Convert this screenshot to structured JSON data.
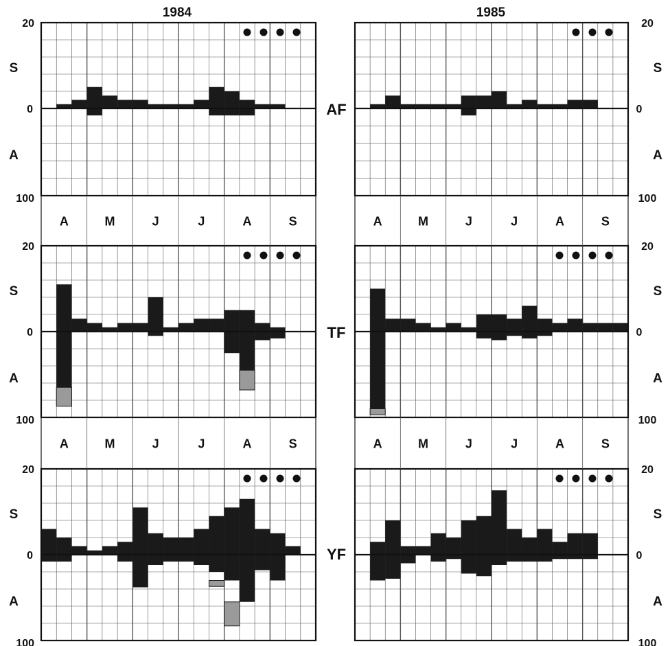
{
  "colors": {
    "bar": "#1a1a1a",
    "shaded": "#9a9a9a",
    "grid": "#555555",
    "frame": "#111111"
  },
  "chart_data": [
    {
      "type": "bar",
      "title": "1984",
      "panel": "AF",
      "side": "left",
      "months": [
        "A",
        "M",
        "J",
        "J",
        "A",
        "S"
      ],
      "y_top_label": "20",
      "y_zero_label": "0",
      "y_bottom_label": "100",
      "upper_label": "S",
      "lower_label": "A",
      "ylim_upper": [
        0,
        20
      ],
      "ylim_lower": [
        0,
        100
      ],
      "dots": 4,
      "grid": true,
      "weeks_start": 1,
      "S": [
        1,
        2,
        5,
        3,
        2,
        2,
        1,
        1,
        1,
        2,
        5,
        4,
        2,
        1,
        1
      ],
      "A": [
        0,
        0,
        8,
        0,
        0,
        0,
        0,
        0,
        0,
        0,
        8,
        8,
        8,
        0,
        0
      ],
      "A_shaded": []
    },
    {
      "type": "bar",
      "title": "1984",
      "panel": "TF",
      "side": "left",
      "months": [
        "A",
        "M",
        "J",
        "J",
        "A",
        "S"
      ],
      "y_top_label": "20",
      "y_zero_label": "0",
      "y_bottom_label": "100",
      "upper_label": "S",
      "lower_label": "A",
      "ylim_upper": [
        0,
        20
      ],
      "ylim_lower": [
        0,
        100
      ],
      "dots": 4,
      "grid": true,
      "weeks_start": 1,
      "S": [
        11,
        3,
        2,
        1,
        2,
        2,
        8,
        1,
        2,
        3,
        3,
        5,
        5,
        2,
        1
      ],
      "A": [
        65,
        0,
        0,
        0,
        0,
        0,
        5,
        0,
        0,
        0,
        0,
        25,
        45,
        10,
        8
      ],
      "A_shaded": [
        {
          "week": 1,
          "from": 65,
          "to": 87
        },
        {
          "week": 13,
          "from": 45,
          "to": 68
        }
      ]
    },
    {
      "type": "bar",
      "title": "1984",
      "panel": "YF",
      "side": "left",
      "months": [
        "A",
        "M",
        "J",
        "J",
        "A",
        "S"
      ],
      "y_top_label": "20",
      "y_zero_label": "0",
      "y_bottom_label": "100",
      "upper_label": "S",
      "lower_label": "A",
      "ylim_upper": [
        0,
        20
      ],
      "ylim_lower": [
        0,
        100
      ],
      "dots": 4,
      "grid": true,
      "weeks_start": 0,
      "S": [
        6,
        4,
        2,
        1,
        2,
        3,
        11,
        5,
        4,
        4,
        6,
        9,
        11,
        13,
        6,
        5,
        2
      ],
      "A": [
        8,
        8,
        0,
        0,
        0,
        8,
        38,
        12,
        8,
        8,
        12,
        20,
        30,
        55,
        18,
        30,
        0
      ],
      "A_shaded": [
        {
          "week": 12,
          "from": 30,
          "to": 37
        },
        {
          "week": 13,
          "from": 55,
          "to": 83
        }
      ]
    },
    {
      "type": "bar",
      "title": "1985",
      "panel": "AF",
      "side": "right",
      "months": [
        "A",
        "M",
        "J",
        "J",
        "A",
        "S"
      ],
      "y_top_label": "20",
      "y_zero_label": "0",
      "y_bottom_label": "100",
      "upper_label": "S",
      "lower_label": "A",
      "ylim_upper": [
        0,
        20
      ],
      "ylim_lower": [
        0,
        100
      ],
      "dots": 3,
      "grid": true,
      "weeks_start": 1,
      "S": [
        1,
        3,
        1,
        1,
        1,
        1,
        3,
        3,
        4,
        1,
        2,
        1,
        1,
        2,
        2
      ],
      "A": [
        0,
        0,
        0,
        0,
        0,
        0,
        8,
        0,
        0,
        0,
        0,
        0,
        0,
        0,
        0
      ],
      "A_shaded": []
    },
    {
      "type": "bar",
      "title": "1985",
      "panel": "TF",
      "side": "right",
      "months": [
        "A",
        "M",
        "J",
        "J",
        "A",
        "S"
      ],
      "y_top_label": "20",
      "y_zero_label": "0",
      "y_bottom_label": "100",
      "upper_label": "S",
      "lower_label": "A",
      "ylim_upper": [
        0,
        20
      ],
      "ylim_lower": [
        0,
        100
      ],
      "dots": 4,
      "grid": true,
      "weeks_start": 1,
      "S": [
        10,
        3,
        3,
        2,
        1,
        2,
        1,
        4,
        4,
        3,
        6,
        3,
        2,
        3,
        2,
        2,
        2
      ],
      "A": [
        90,
        0,
        0,
        0,
        0,
        0,
        0,
        8,
        10,
        5,
        8,
        5,
        0,
        0,
        0,
        0,
        0
      ],
      "A_shaded": [
        {
          "week": 1,
          "from": 90,
          "to": 97
        }
      ]
    },
    {
      "type": "bar",
      "title": "1985",
      "panel": "YF",
      "side": "right",
      "months": [
        "A",
        "M",
        "J",
        "J",
        "A",
        "S"
      ],
      "y_top_label": "20",
      "y_zero_label": "0",
      "y_bottom_label": "100",
      "upper_label": "S",
      "lower_label": "A",
      "ylim_upper": [
        0,
        20
      ],
      "ylim_lower": [
        0,
        100
      ],
      "dots": 4,
      "grid": true,
      "weeks_start": 1,
      "S": [
        3,
        8,
        2,
        2,
        5,
        4,
        8,
        9,
        15,
        6,
        4,
        6,
        3,
        5,
        5
      ],
      "A": [
        30,
        28,
        10,
        0,
        8,
        5,
        22,
        25,
        12,
        8,
        8,
        8,
        5,
        5,
        5
      ],
      "A_shaded": []
    }
  ],
  "labels": {
    "year_left": "1984",
    "year_right": "1985",
    "panel_af": "AF",
    "panel_tf": "TF",
    "panel_yf": "YF",
    "months": [
      "A",
      "M",
      "J",
      "J",
      "A",
      "S"
    ]
  }
}
